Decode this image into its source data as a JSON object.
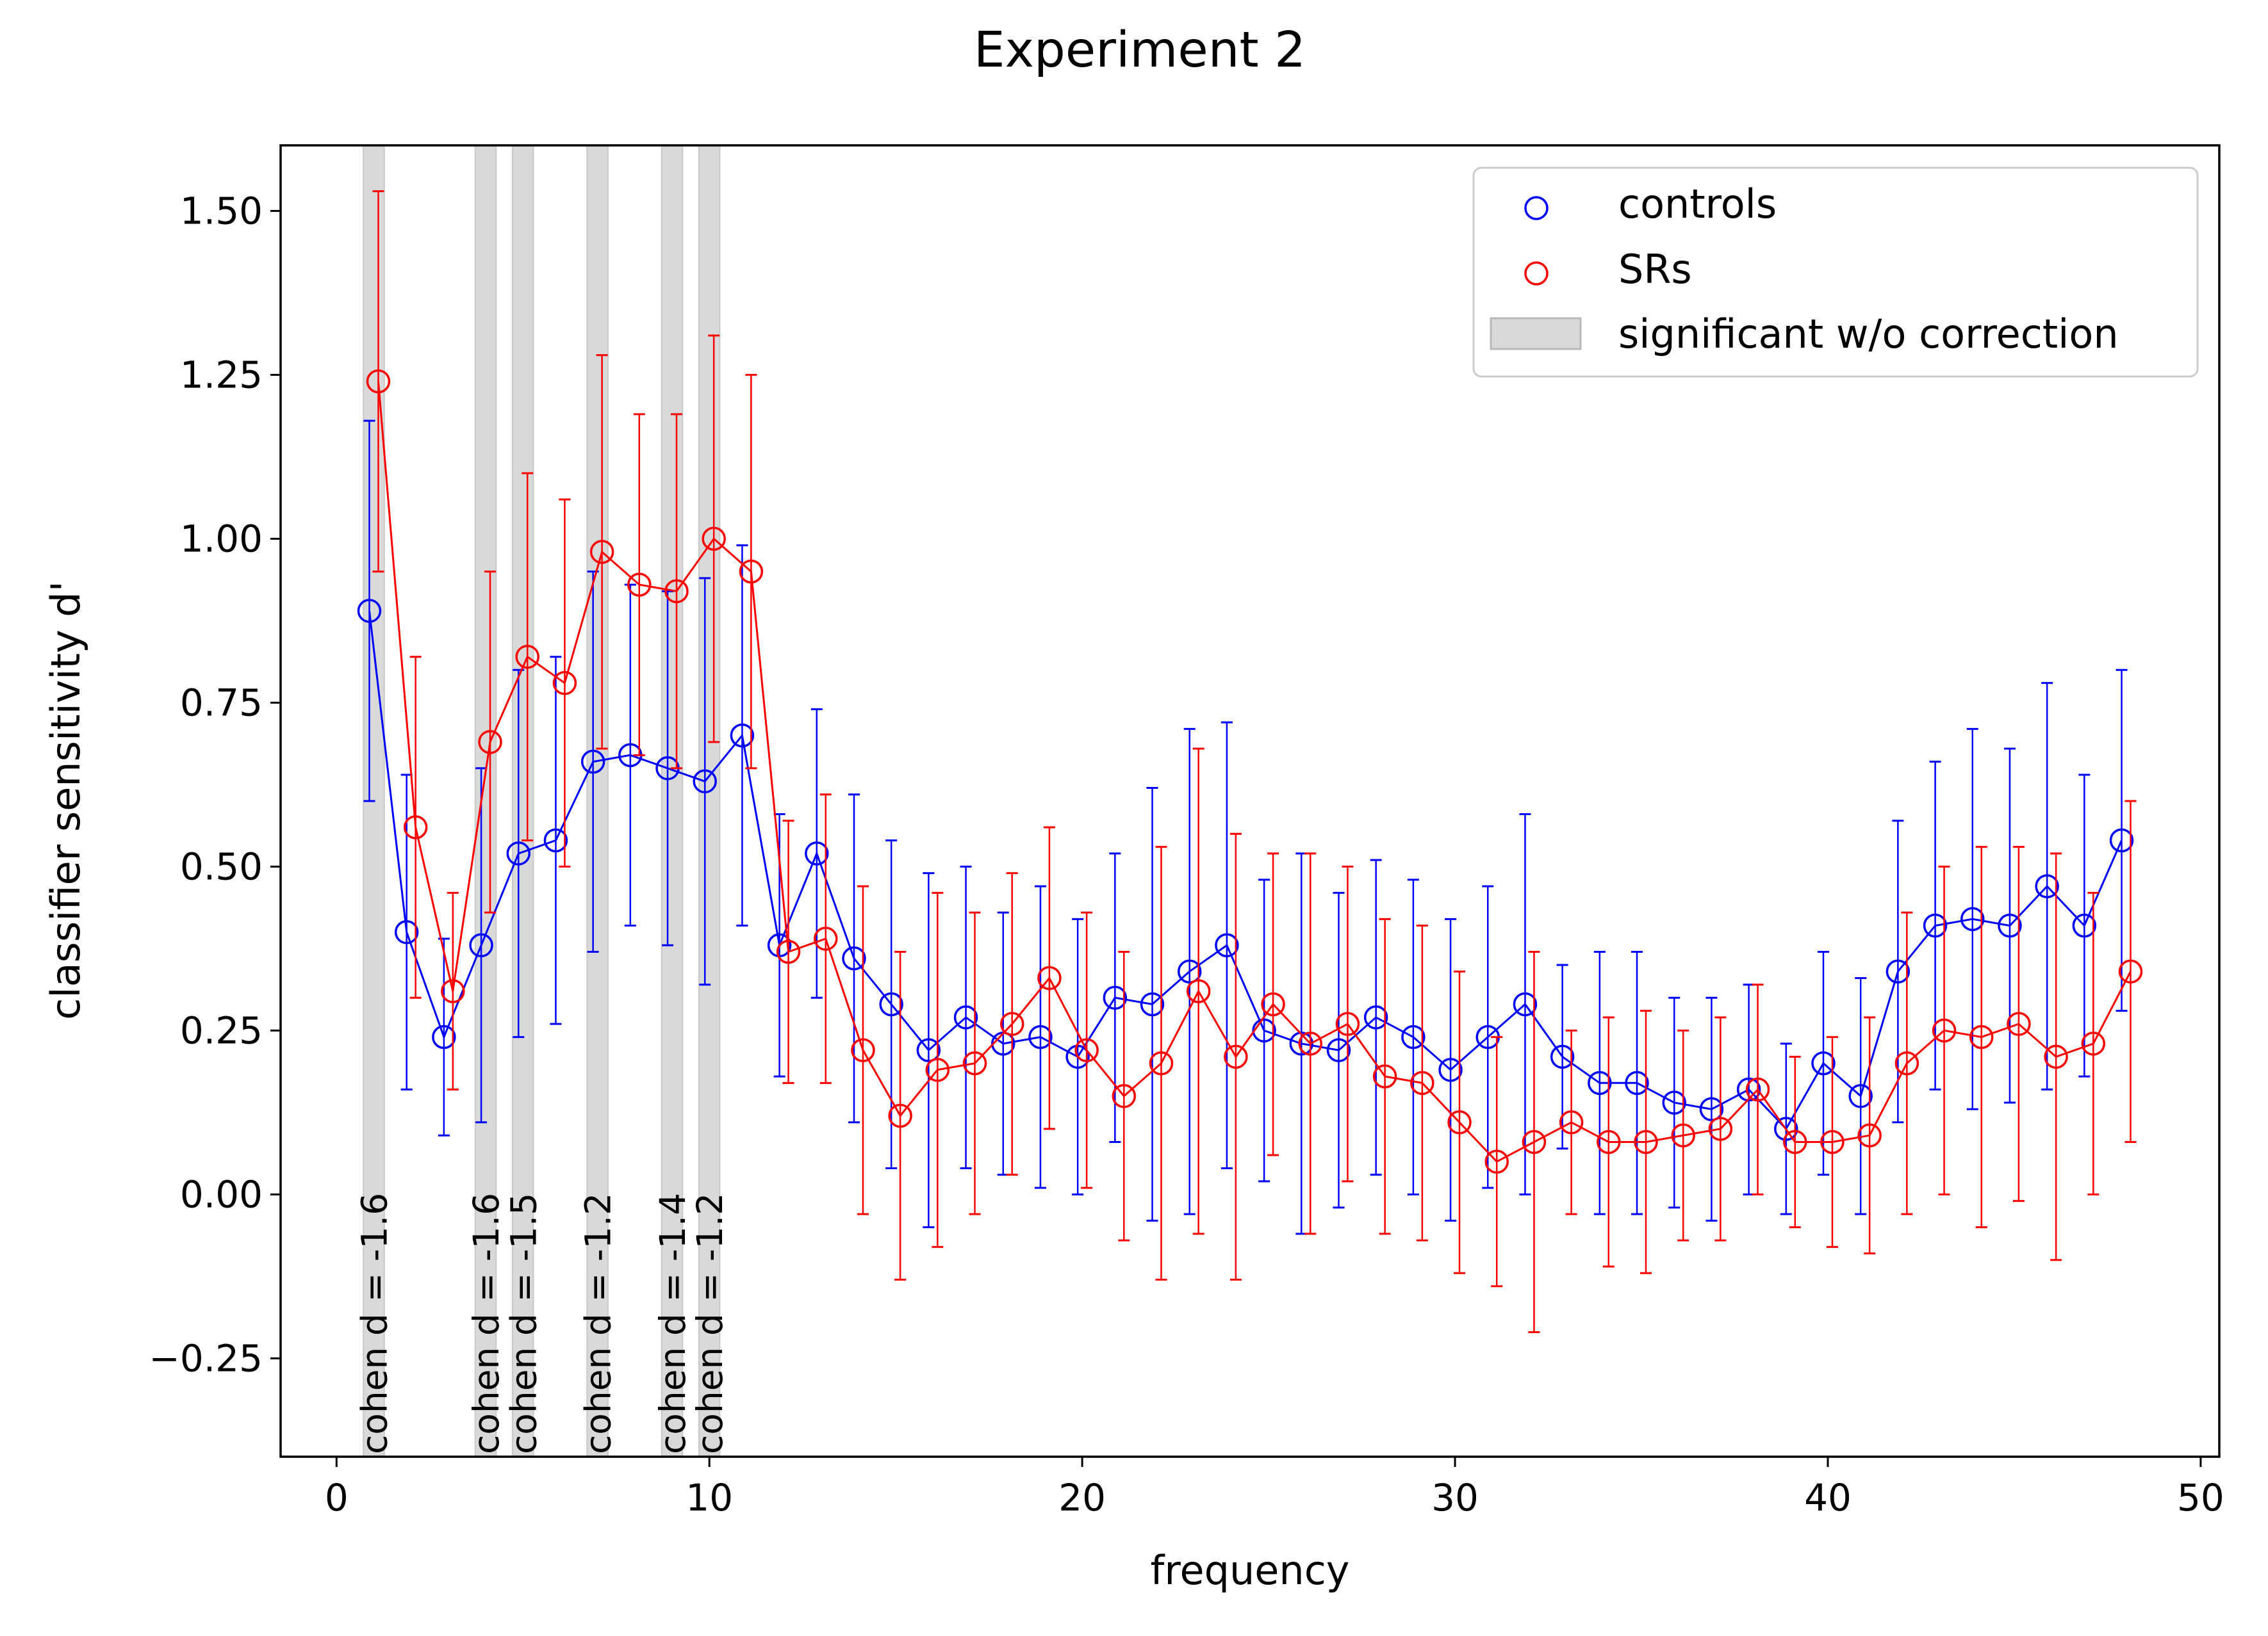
{
  "chart_data": {
    "type": "scatter",
    "title": "Experiment 2",
    "xlabel": "frequency",
    "ylabel": "classifier sensitivity d'",
    "xlim": [
      -1.5,
      50.5
    ],
    "ylim": [
      -0.4,
      1.6
    ],
    "xticks": [
      0,
      10,
      20,
      30,
      40,
      50
    ],
    "xtick_labels": [
      "0",
      "10",
      "20",
      "30",
      "40",
      "50"
    ],
    "yticks": [
      -0.25,
      0.0,
      0.25,
      0.5,
      0.75,
      1.0,
      1.25,
      1.5
    ],
    "ytick_labels": [
      "−0.25",
      "0.00",
      "0.25",
      "0.50",
      "0.75",
      "1.00",
      "1.25",
      "1.50"
    ],
    "grid": false,
    "legend_position": "top-right",
    "series": [
      {
        "name": "controls",
        "color": "#0000ff",
        "marker": "open-circle",
        "x": [
          1,
          2,
          3,
          4,
          5,
          6,
          7,
          8,
          9,
          10,
          11,
          12,
          13,
          14,
          15,
          16,
          17,
          18,
          19,
          20,
          21,
          22,
          23,
          24,
          25,
          26,
          27,
          28,
          29,
          30,
          31,
          32,
          33,
          34,
          35,
          36,
          37,
          38,
          39,
          40,
          41,
          42,
          43,
          44,
          45,
          46,
          47,
          48
        ],
        "y": [
          0.89,
          0.4,
          0.24,
          0.38,
          0.52,
          0.54,
          0.66,
          0.67,
          0.65,
          0.63,
          0.7,
          0.38,
          0.52,
          0.36,
          0.29,
          0.22,
          0.27,
          0.23,
          0.24,
          0.21,
          0.3,
          0.29,
          0.34,
          0.38,
          0.25,
          0.23,
          0.22,
          0.27,
          0.24,
          0.19,
          0.24,
          0.29,
          0.21,
          0.17,
          0.17,
          0.14,
          0.13,
          0.16,
          0.1,
          0.2,
          0.15,
          0.34,
          0.41,
          0.42,
          0.41,
          0.47,
          0.41,
          0.54
        ],
        "err": [
          0.29,
          0.24,
          0.15,
          0.27,
          0.28,
          0.28,
          0.29,
          0.26,
          0.27,
          0.31,
          0.29,
          0.2,
          0.22,
          0.25,
          0.25,
          0.27,
          0.23,
          0.2,
          0.23,
          0.21,
          0.22,
          0.33,
          0.37,
          0.34,
          0.23,
          0.29,
          0.24,
          0.24,
          0.24,
          0.23,
          0.23,
          0.29,
          0.14,
          0.2,
          0.2,
          0.16,
          0.17,
          0.16,
          0.13,
          0.17,
          0.18,
          0.23,
          0.25,
          0.29,
          0.27,
          0.31,
          0.23,
          0.26
        ]
      },
      {
        "name": "SRs",
        "color": "#ff0000",
        "marker": "open-circle",
        "x": [
          1,
          2,
          3,
          4,
          5,
          6,
          7,
          8,
          9,
          10,
          11,
          12,
          13,
          14,
          15,
          16,
          17,
          18,
          19,
          20,
          21,
          22,
          23,
          24,
          25,
          26,
          27,
          28,
          29,
          30,
          31,
          32,
          33,
          34,
          35,
          36,
          37,
          38,
          39,
          40,
          41,
          42,
          43,
          44,
          45,
          46,
          47,
          48
        ],
        "y": [
          1.24,
          0.56,
          0.31,
          0.69,
          0.82,
          0.78,
          0.98,
          0.93,
          0.92,
          1.0,
          0.95,
          0.37,
          0.39,
          0.22,
          0.12,
          0.19,
          0.2,
          0.26,
          0.33,
          0.22,
          0.15,
          0.2,
          0.31,
          0.21,
          0.29,
          0.23,
          0.26,
          0.18,
          0.17,
          0.11,
          0.05,
          0.08,
          0.11,
          0.08,
          0.08,
          0.09,
          0.1,
          0.16,
          0.08,
          0.08,
          0.09,
          0.2,
          0.25,
          0.24,
          0.26,
          0.21,
          0.23,
          0.34
        ],
        "err": [
          0.29,
          0.26,
          0.15,
          0.26,
          0.28,
          0.28,
          0.3,
          0.26,
          0.27,
          0.31,
          0.3,
          0.2,
          0.22,
          0.25,
          0.25,
          0.27,
          0.23,
          0.23,
          0.23,
          0.21,
          0.22,
          0.33,
          0.37,
          0.34,
          0.23,
          0.29,
          0.24,
          0.24,
          0.24,
          0.23,
          0.19,
          0.29,
          0.14,
          0.19,
          0.2,
          0.16,
          0.17,
          0.16,
          0.13,
          0.16,
          0.18,
          0.23,
          0.25,
          0.29,
          0.27,
          0.31,
          0.23,
          0.26
        ]
      }
    ],
    "significance_label": "significant w/o correction",
    "significance_color": "#d9d9d9",
    "significant_bands": [
      {
        "x": 1,
        "label": "cohen d = -1.6"
      },
      {
        "x": 4,
        "label": "cohen d = -1.6"
      },
      {
        "x": 5,
        "label": "cohen d = -1.5"
      },
      {
        "x": 7,
        "label": "cohen d = -1.2"
      },
      {
        "x": 9,
        "label": "cohen d = -1.4"
      },
      {
        "x": 10,
        "label": "cohen d = -1.2"
      }
    ]
  }
}
